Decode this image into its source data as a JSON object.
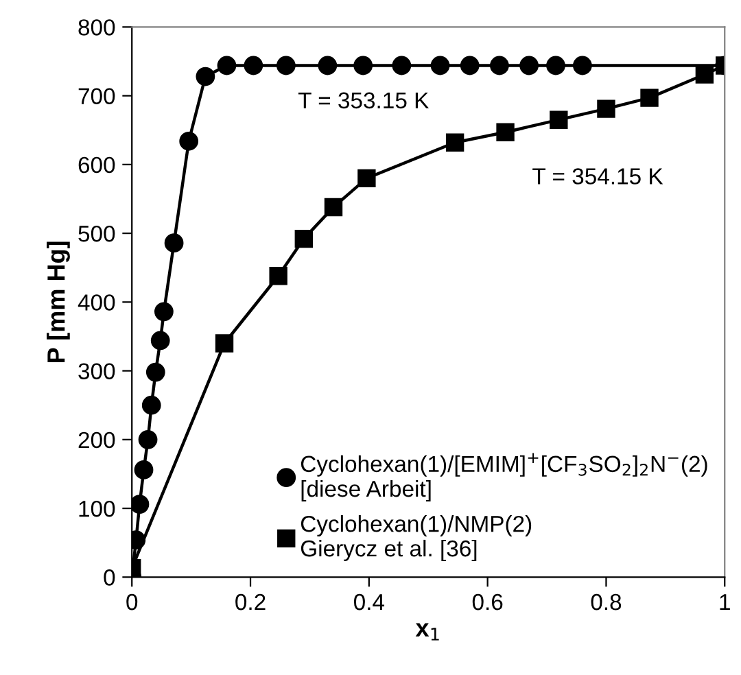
{
  "chart_data": {
    "type": "line",
    "xlabel": "x$_{1}$",
    "ylabel": "P [mm Hg]",
    "xlim": [
      0,
      1
    ],
    "ylim": [
      0,
      800
    ],
    "xticks": [
      0,
      0.2,
      0.4,
      0.6,
      0.8,
      1
    ],
    "yticks": [
      0,
      100,
      200,
      300,
      400,
      500,
      600,
      700,
      800
    ],
    "grid": false,
    "legend": "bottom right",
    "line_style": "solid",
    "series": [
      {
        "name": "Cyclohexan(1)/[EMIM]$^{+}$[CF$_{3}$SO$_{2}$]$_{2}$N$^{−}$(2)\n[diese Arbeit]",
        "color": "#000000",
        "marker": "circle",
        "x": [
          0,
          0.007,
          0.013,
          0.02,
          0.027,
          0.033,
          0.04,
          0.048,
          0.054,
          0.071,
          0.096,
          0.124,
          0.16,
          0.205,
          0.26,
          0.33,
          0.39,
          0.455,
          0.52,
          0.57,
          0.62,
          0.67,
          0.715,
          0.76,
          1
        ],
        "values": [
          0,
          54,
          106,
          156,
          200,
          250,
          298,
          344,
          386,
          486,
          634,
          728,
          744,
          744,
          744,
          744,
          744,
          744,
          744,
          744,
          744,
          744,
          744,
          744,
          744
        ]
      },
      {
        "name": "Cyclohexan(1)/NMP(2)\nGierycz et al. [36]",
        "color": "#000000",
        "marker": "square",
        "x": [
          0,
          0.156,
          0.247,
          0.29,
          0.34,
          0.396,
          0.545,
          0.63,
          0.72,
          0.8,
          0.873,
          0.966,
          1
        ],
        "values": [
          13,
          340,
          438,
          492,
          538,
          580,
          632,
          647,
          665,
          681,
          697,
          731,
          744
        ]
      }
    ],
    "annotations": [
      "T = 353.15 K",
      "T = 354.15 K"
    ]
  }
}
